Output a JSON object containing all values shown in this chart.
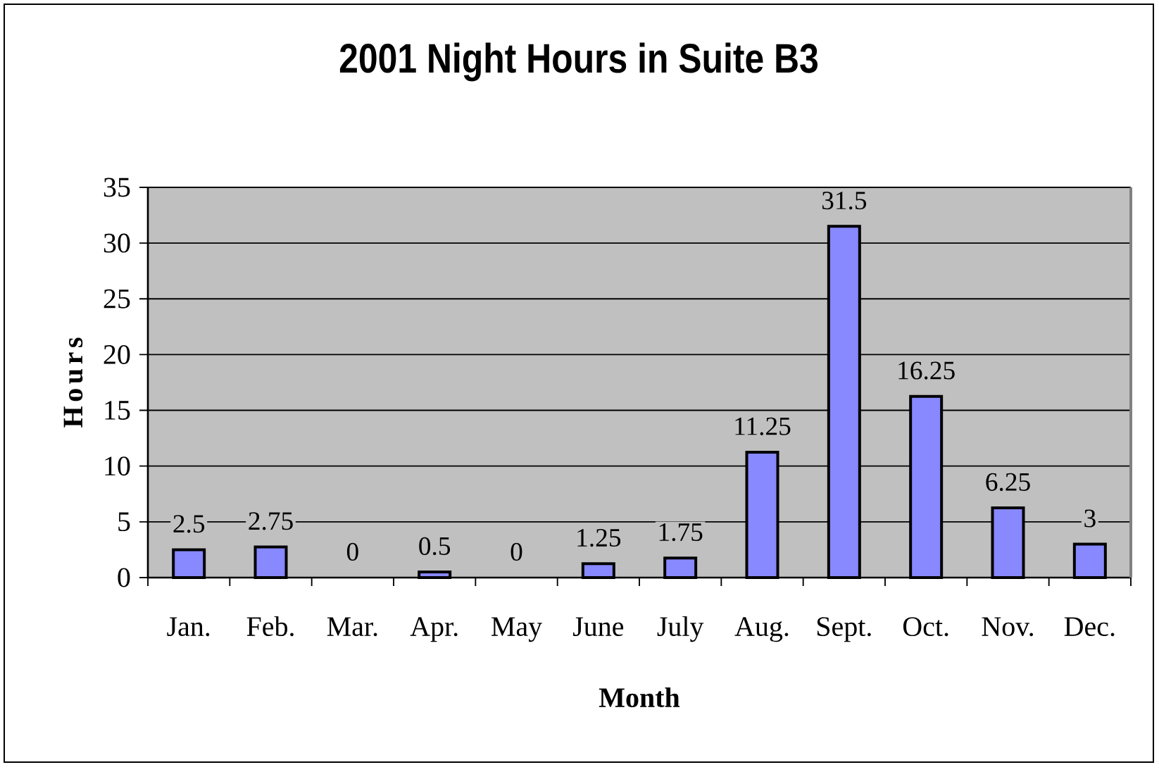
{
  "chart_data": {
    "type": "bar",
    "title": "2001 Night Hours in Suite B3",
    "xlabel": "Month",
    "ylabel": "Hours",
    "categories": [
      "Jan.",
      "Feb.",
      "Mar.",
      "Apr.",
      "May",
      "June",
      "July",
      "Aug.",
      "Sept.",
      "Oct.",
      "Nov.",
      "Dec."
    ],
    "values": [
      2.5,
      2.75,
      0,
      0.5,
      0,
      1.25,
      1.75,
      11.25,
      31.5,
      16.25,
      6.25,
      3
    ],
    "color": "#8888ff",
    "ylim": [
      0,
      35
    ],
    "yticks": [
      0,
      5,
      10,
      15,
      20,
      25,
      30,
      35
    ],
    "grid": "y",
    "data_labels": true
  }
}
